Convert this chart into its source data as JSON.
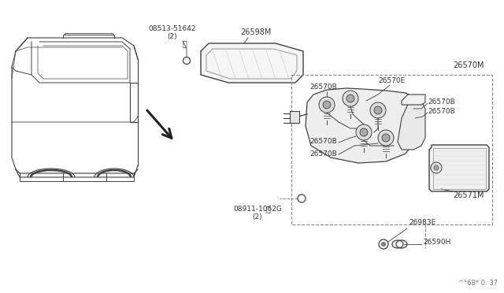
{
  "bg_color": "#ffffff",
  "lc": "#404040",
  "lc_light": "#888888",
  "fig_width": 6.4,
  "fig_height": 3.72,
  "dpi": 100,
  "footer_text": "^°68* 0: 37",
  "labels": {
    "S_part": "08513-51642\n(2)",
    "N_part": "08911-1062G\n(2)",
    "26598M": "26598M",
    "26570M": "26570M",
    "26570E": "26570E",
    "26570B": "26570B",
    "26571M": "26571M",
    "26983E": "26983E",
    "26590H": "26590H"
  }
}
